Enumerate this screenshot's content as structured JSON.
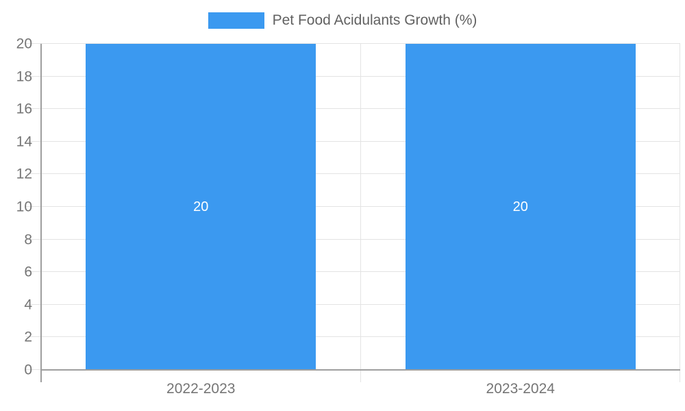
{
  "legend": {
    "label": "Pet Food Acidulants Growth (%)"
  },
  "chart_data": {
    "type": "bar",
    "title": "Pet Food Acidulants Growth (%)",
    "categories": [
      "2022-2023",
      "2023-2024"
    ],
    "values": [
      20,
      20
    ],
    "bar_labels": [
      "20",
      "20"
    ],
    "xlabel": "",
    "ylabel": "",
    "ylim": [
      0,
      20
    ],
    "yticks": [
      0,
      2,
      4,
      6,
      8,
      10,
      12,
      14,
      16,
      18,
      20
    ],
    "grid": true,
    "legend_position": "top",
    "bar_width_fraction": 0.72,
    "colors": {
      "bar": "#3B99F0",
      "grid": "#e3e3e3",
      "axis": "#9e9e9e",
      "tick_text": "#757575",
      "legend_text": "#616161",
      "bar_label_text": "#ffffff"
    }
  }
}
